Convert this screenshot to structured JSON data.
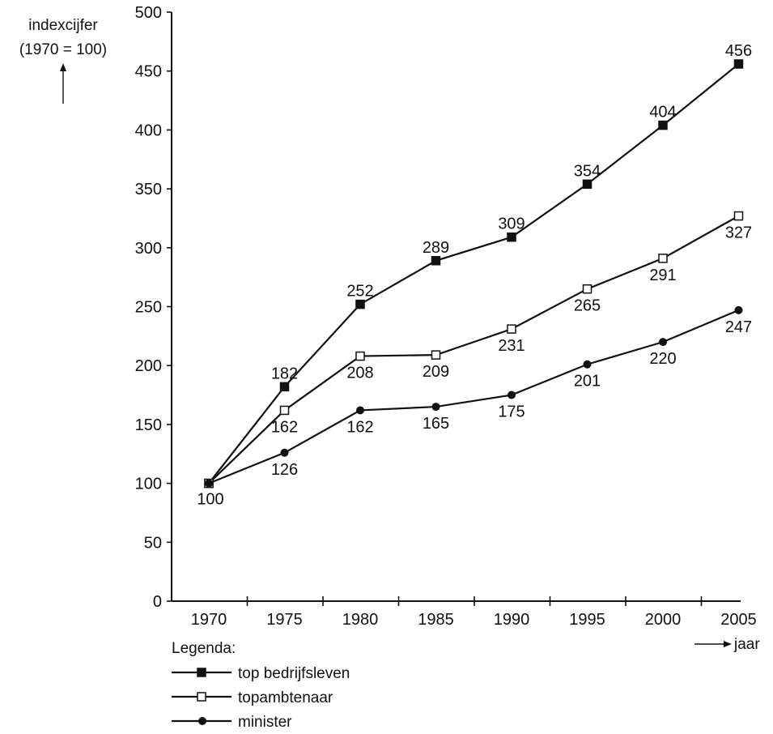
{
  "chart_data": {
    "type": "line",
    "x": [
      1970,
      1975,
      1980,
      1985,
      1990,
      1995,
      2000,
      2005
    ],
    "x_tick_labels": [
      "1970",
      "1975",
      "1980",
      "1985",
      "1990",
      "1995",
      "2000",
      "2005"
    ],
    "y_ticks": [
      0,
      50,
      100,
      150,
      200,
      250,
      300,
      350,
      400,
      450,
      500
    ],
    "y_tick_labels": [
      "0",
      "50",
      "100",
      "150",
      "200",
      "250",
      "300",
      "350",
      "400",
      "450",
      "500"
    ],
    "ylim": [
      0,
      500
    ],
    "ylabel_line1": "indexcijfer",
    "ylabel_line2": "(1970 = 100)",
    "xlabel": "jaar",
    "legend_title": "Legenda:",
    "grid": false,
    "series": [
      {
        "name": "top bedrijfsleven",
        "marker": "filled-square",
        "values": [
          100,
          182,
          252,
          289,
          309,
          354,
          404,
          456
        ],
        "labels": [
          "",
          "182",
          "252",
          "289",
          "309",
          "354",
          "404",
          "456"
        ]
      },
      {
        "name": "topambtenaar",
        "marker": "open-square",
        "values": [
          100,
          162,
          208,
          209,
          231,
          265,
          291,
          327
        ],
        "labels": [
          "",
          "162",
          "208",
          "209",
          "231",
          "265",
          "291",
          "327"
        ]
      },
      {
        "name": "minister",
        "marker": "filled-circle",
        "values": [
          100,
          126,
          162,
          165,
          175,
          201,
          220,
          247
        ],
        "labels": [
          "100",
          "126",
          "162",
          "165",
          "175",
          "201",
          "220",
          "247"
        ]
      }
    ]
  }
}
